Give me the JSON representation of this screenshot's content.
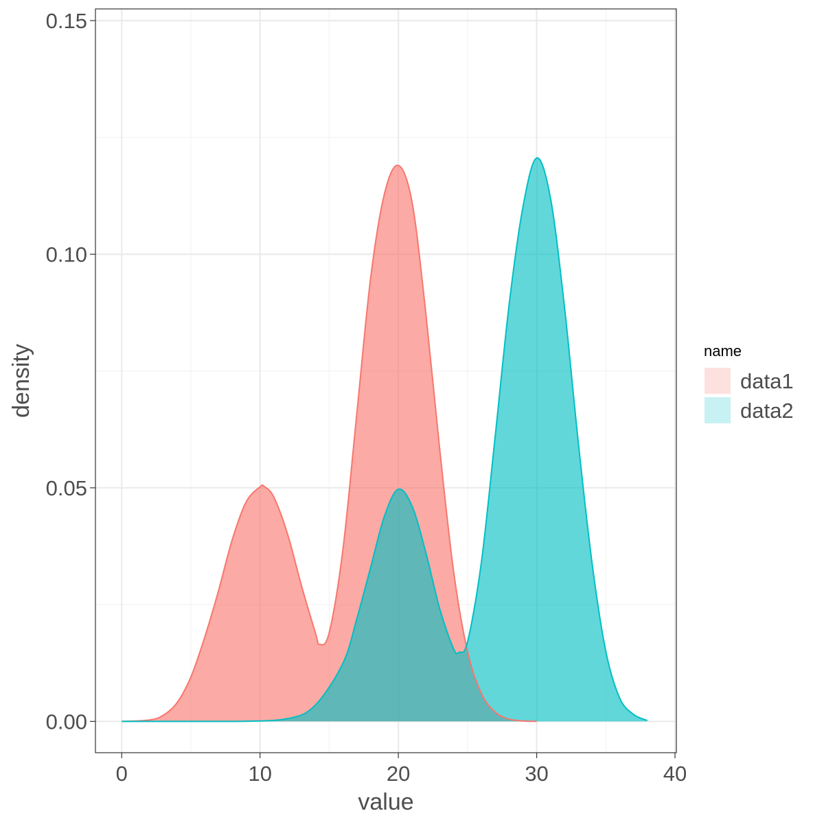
{
  "chart_data": {
    "type": "area",
    "xlabel": "value",
    "ylabel": "density",
    "xlim": [
      -1.9,
      40.1
    ],
    "ylim": [
      -0.0067,
      0.1525
    ],
    "x_ticks": [
      0,
      10,
      20,
      30,
      40
    ],
    "x_tick_labels": [
      "0",
      "10",
      "20",
      "30",
      "40"
    ],
    "y_ticks": [
      0.0,
      0.05,
      0.1,
      0.15
    ],
    "y_tick_labels": [
      "0.00",
      "0.05",
      "0.10",
      "0.15"
    ],
    "grid": true,
    "legend": {
      "title": "name",
      "placement": "right"
    },
    "series": [
      {
        "name": "data1",
        "color": "#F8766D",
        "x": [
          0,
          2,
          3,
          4,
          5,
          6,
          7,
          8,
          9,
          10,
          10.3,
          11,
          12,
          13,
          14,
          14.3,
          15,
          16,
          17,
          18,
          19,
          20,
          21,
          22,
          23,
          24,
          25,
          26,
          27,
          28,
          29,
          30
        ],
        "y": [
          0.0,
          0.0003,
          0.0013,
          0.004,
          0.0095,
          0.018,
          0.028,
          0.039,
          0.047,
          0.0502,
          0.0503,
          0.048,
          0.04,
          0.029,
          0.019,
          0.0165,
          0.019,
          0.037,
          0.066,
          0.095,
          0.113,
          0.119,
          0.111,
          0.087,
          0.058,
          0.032,
          0.015,
          0.006,
          0.002,
          0.0005,
          0.0001,
          0.0
        ]
      },
      {
        "name": "data2",
        "color": "#00BFC4",
        "x": [
          0,
          8,
          12,
          14,
          16,
          17,
          18,
          19,
          20,
          21,
          22,
          23,
          24,
          24.4,
          25,
          26,
          27,
          28,
          29,
          30,
          31,
          32,
          33,
          34,
          35,
          36,
          37,
          38
        ],
        "y": [
          0.0,
          0.0,
          0.0006,
          0.0035,
          0.0125,
          0.022,
          0.033,
          0.044,
          0.0497,
          0.046,
          0.036,
          0.024,
          0.0155,
          0.0148,
          0.017,
          0.034,
          0.061,
          0.089,
          0.11,
          0.1206,
          0.112,
          0.089,
          0.06,
          0.034,
          0.015,
          0.005,
          0.0015,
          0.0002
        ]
      }
    ]
  }
}
